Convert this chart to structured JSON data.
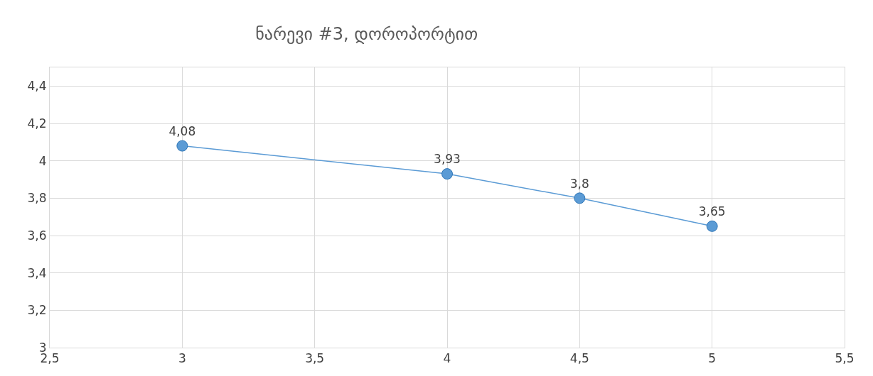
{
  "chart_data": {
    "type": "line",
    "title": "ნარევი #3, დოროპორტით",
    "x": [
      3,
      4,
      4.5,
      5
    ],
    "series": [
      {
        "color": "#5b9bd5",
        "values": [
          4.08,
          3.93,
          3.8,
          3.65
        ]
      }
    ],
    "value_labels": [
      "4,08",
      "3,93",
      "3,8",
      "3,65"
    ],
    "xlim": [
      2.5,
      5.5
    ],
    "xticks": [
      {
        "value": 2.5,
        "label": "2,5"
      },
      3,
      {
        "value": 3.5,
        "label": "3,5"
      },
      4,
      {
        "value": 4.5,
        "label": "4,5"
      },
      5,
      {
        "value": 5.5,
        "label": "5,5"
      }
    ],
    "ylim": [
      3,
      4.5
    ],
    "yticks": [
      3,
      {
        "value": 3.2,
        "label": "3,2"
      },
      {
        "value": 3.4,
        "label": "3,4"
      },
      {
        "value": 3.6,
        "label": "3,6"
      },
      {
        "value": 3.8,
        "label": "3,8"
      },
      4,
      {
        "value": 4.2,
        "label": "4,2"
      },
      {
        "value": 4.4,
        "label": "4,4"
      }
    ],
    "grid": true,
    "legend": false,
    "marker": "circle",
    "line_style": "solid"
  }
}
